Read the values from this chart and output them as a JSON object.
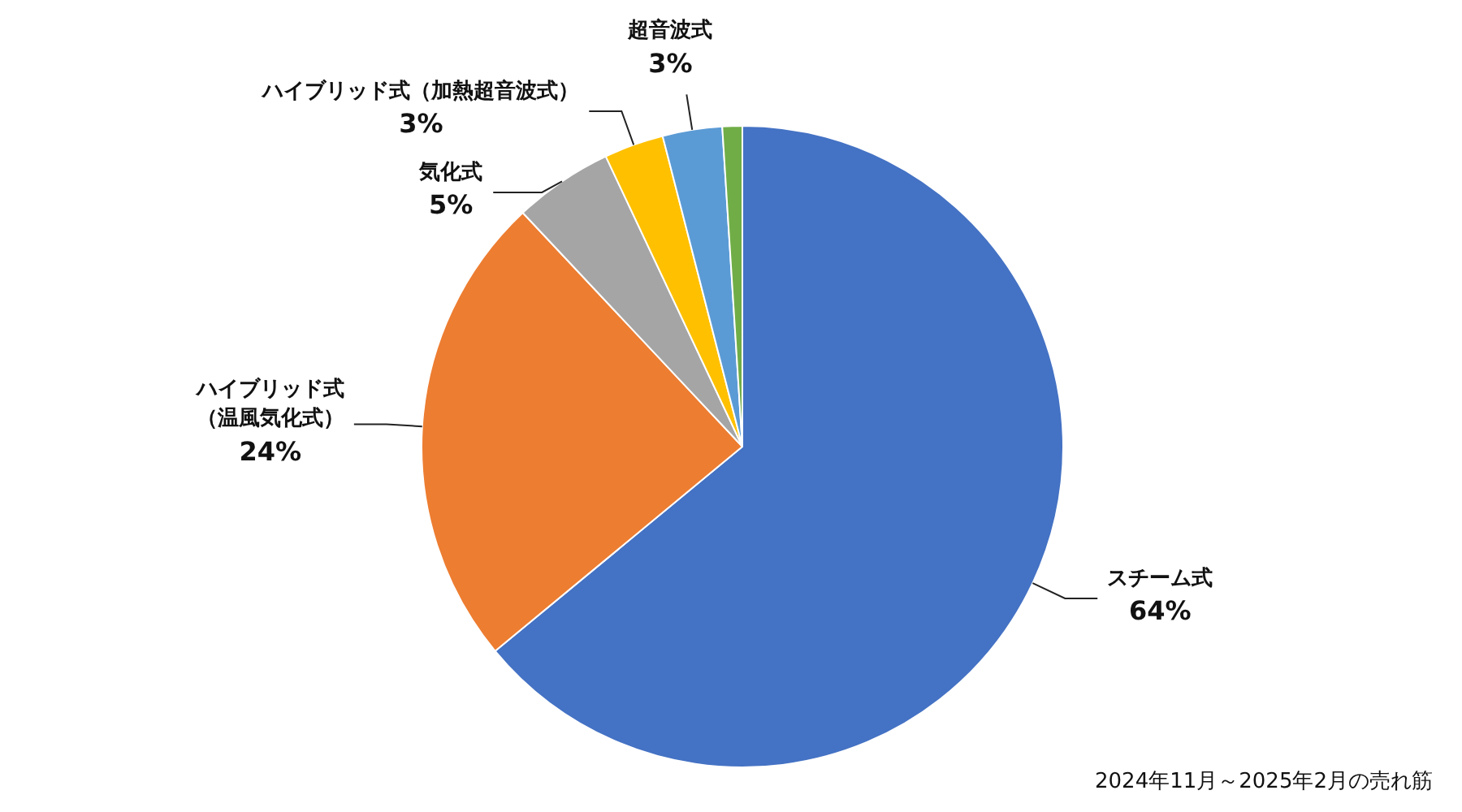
{
  "chart_data": {
    "type": "pie",
    "categories": [
      "スチーム式",
      "ハイブリッド式（温風気化式）",
      "気化式",
      "ハイブリッド式（加熱超音波式）",
      "超音波式",
      null
    ],
    "values": [
      64,
      24,
      5,
      3,
      3,
      1
    ],
    "colors": [
      "#4472c4",
      "#ed7d31",
      "#a5a5a5",
      "#ffc000",
      "#5b9bd5",
      "#70ad47"
    ],
    "value_labels": [
      "64%",
      "24%",
      "5%",
      "3%",
      "3%",
      null
    ],
    "legend": false,
    "annotations": [
      "2024年11月～2025年2月の売れ筋"
    ]
  }
}
